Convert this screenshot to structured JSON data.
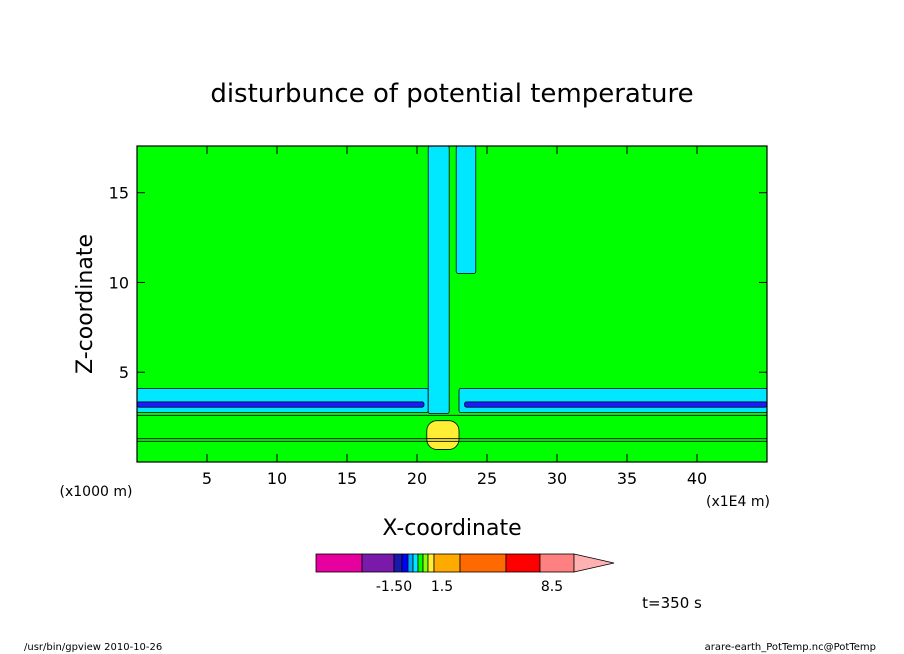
{
  "chart_data": {
    "type": "heatmap",
    "title": "disturbunce of potential temperature",
    "xlabel": "X-coordinate",
    "ylabel": "Z-coordinate",
    "x_units": "(x1E4 m)",
    "y_units": "(x1000 m)",
    "xlim": [
      0,
      45
    ],
    "ylim": [
      0,
      17.6
    ],
    "x_ticks": [
      5,
      10,
      15,
      20,
      25,
      30,
      35,
      40
    ],
    "y_ticks": [
      5,
      10,
      15
    ],
    "background_fill": "#00ff00",
    "regions": [
      {
        "name": "cyan-layer-left",
        "color": "#00e8ff",
        "x": [
          0,
          20.8
        ],
        "z": [
          2.75,
          4.1
        ]
      },
      {
        "name": "cyan-layer-right",
        "color": "#00e8ff",
        "x": [
          23.0,
          45
        ],
        "z": [
          2.75,
          4.1
        ]
      },
      {
        "name": "blue-band-left",
        "color": "#1a1aff",
        "x": [
          0,
          20.5
        ],
        "z": [
          3.05,
          3.35
        ]
      },
      {
        "name": "blue-band-right",
        "color": "#1a1aff",
        "x": [
          23.4,
          45
        ],
        "z": [
          3.05,
          3.35
        ]
      },
      {
        "name": "cyan-plume-left",
        "color": "#00e8ff",
        "x": [
          20.8,
          22.3
        ],
        "z": [
          2.7,
          17.6
        ]
      },
      {
        "name": "cyan-plume-right",
        "color": "#00e8ff",
        "x": [
          22.8,
          24.2
        ],
        "z": [
          10.5,
          17.6
        ]
      },
      {
        "name": "yellow-core",
        "color": "#ffee33",
        "x": [
          20.7,
          23.0
        ],
        "z": [
          0.7,
          2.3
        ]
      }
    ],
    "contour_lines_z": [
      1.15,
      1.3,
      2.6
    ],
    "colorbar": {
      "colors": [
        "#e6009e",
        "#7a1aaa",
        "#1a1aaa",
        "#0000ff",
        "#00aaff",
        "#00e8ff",
        "#00ff00",
        "#88ff00",
        "#ffee33",
        "#ffaa00",
        "#ff6a00",
        "#ff0000",
        "#ff8080",
        "#ffb0b0"
      ],
      "labels": [
        "-1.50",
        "1.5",
        "8.5"
      ]
    }
  },
  "annotation": "t=350 s",
  "footer_left": "/usr/bin/gpview   2010-10-26",
  "footer_right": "arare-earth_PotTemp.nc@PotTemp"
}
